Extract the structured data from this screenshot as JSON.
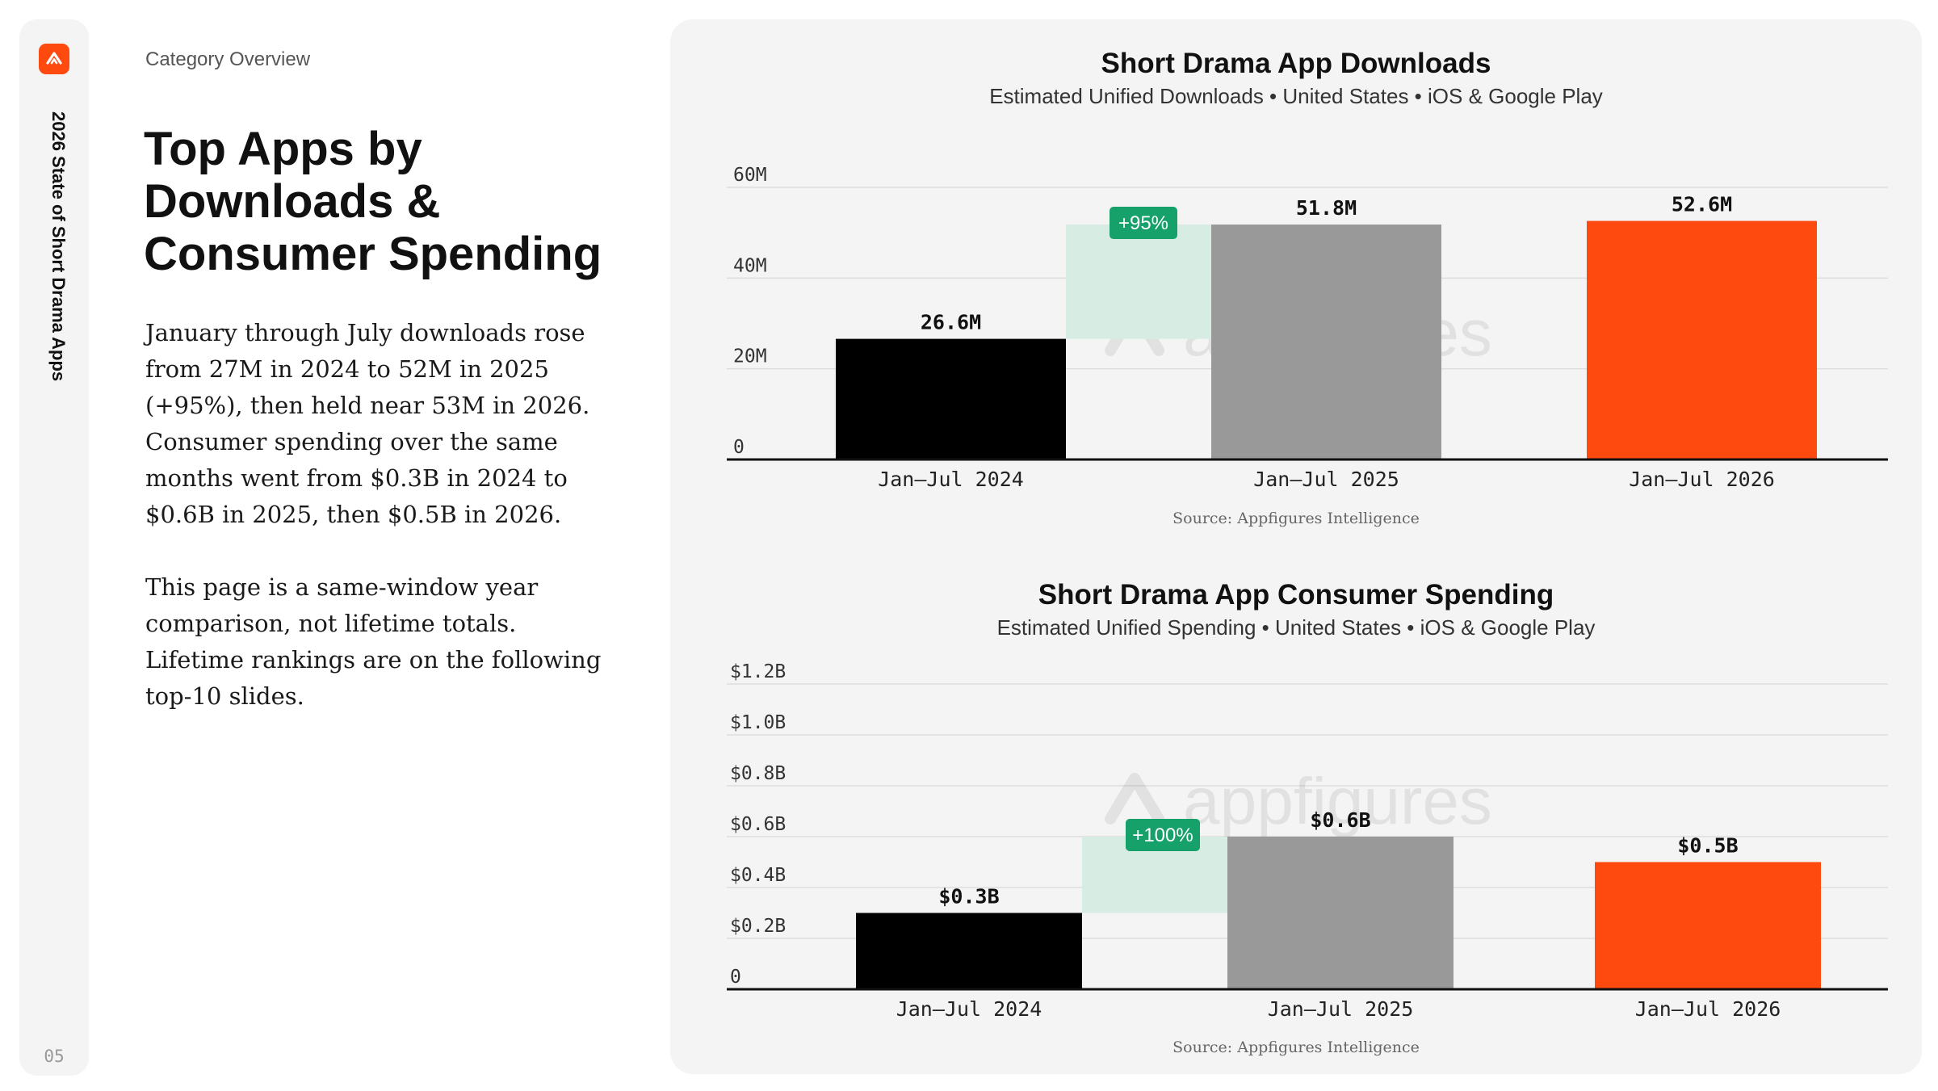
{
  "sidebar": {
    "vertical_title": "2026 State of Short Drama Apps",
    "page_number": "05",
    "logo_icon": "appfigures-logo-icon"
  },
  "eyebrow": "Category Overview",
  "heading": "Top Apps by Downloads & Consumer Spending",
  "paragraphs": [
    "January through July downloads rose from 27M in 2024 to 52M in 2025 (+95%), then held near 53M in 2026. Consumer spending over the same months went from $0.3B in 2024 to $0.6B in 2025, then $0.5B in 2026.",
    "This page is a same-window year comparison, not lifetime totals. Lifetime rankings are on the following top-10 slides."
  ],
  "colors": {
    "accent": "#ff4a0f",
    "bar_2024": "#000000",
    "bar_2025": "#999999",
    "bar_2026": "#ff4a0f",
    "growth_badge": "#16a06a",
    "growth_band": "#d7ece2",
    "panel_bg": "#f4f4f4"
  },
  "chart_data": [
    {
      "type": "bar",
      "title": "Short Drama App Downloads",
      "subtitle": "Estimated Unified Downloads • United States • iOS & Google Play",
      "categories": [
        "Jan–Jul 2024",
        "Jan–Jul 2025",
        "Jan–Jul 2026"
      ],
      "values": [
        26.6,
        51.8,
        52.6
      ],
      "value_labels": [
        "26.6M",
        "51.8M",
        "52.6M"
      ],
      "yticks": [
        0,
        20,
        40,
        60
      ],
      "ytick_labels": [
        "0",
        "20M",
        "40M",
        "60M"
      ],
      "ylim": [
        0,
        60
      ],
      "growth": {
        "from_index": 0,
        "to_index": 1,
        "label": "+95%"
      },
      "watermark": "appfigures",
      "source": "Source: Appfigures Intelligence",
      "grid": true
    },
    {
      "type": "bar",
      "title": "Short Drama App Consumer Spending",
      "subtitle": "Estimated Unified Spending • United States • iOS & Google Play",
      "categories": [
        "Jan–Jul 2024",
        "Jan–Jul 2025",
        "Jan–Jul 2026"
      ],
      "values": [
        0.3,
        0.6,
        0.5
      ],
      "value_labels": [
        "$0.3B",
        "$0.6B",
        "$0.5B"
      ],
      "yticks": [
        0,
        0.2,
        0.4,
        0.6,
        0.8,
        1.0,
        1.2
      ],
      "ytick_labels": [
        "0",
        "$0.2B",
        "$0.4B",
        "$0.6B",
        "$0.8B",
        "$1.0B",
        "$1.2B"
      ],
      "ylim": [
        0,
        1.2
      ],
      "growth": {
        "from_index": 0,
        "to_index": 1,
        "label": "+100%"
      },
      "watermark": "appfigures",
      "source": "Source: Appfigures Intelligence",
      "grid": true
    }
  ]
}
